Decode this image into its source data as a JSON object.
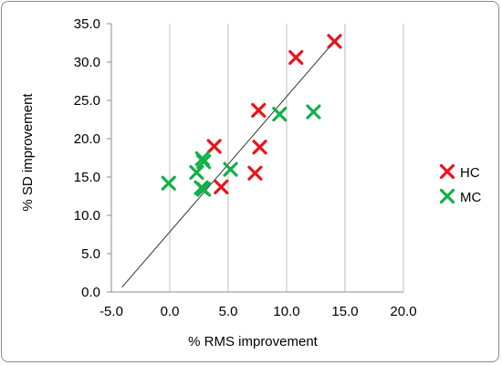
{
  "chart_data": {
    "type": "scatter",
    "xlabel": "% RMS improvement",
    "ylabel": "% SD improvement",
    "xlim": [
      -5.0,
      20.0
    ],
    "ylim": [
      0.0,
      35.0
    ],
    "x_ticks": [
      "-5.0",
      "0.0",
      "5.0",
      "10.0",
      "15.0",
      "20.0"
    ],
    "y_ticks": [
      "0.0",
      "5.0",
      "10.0",
      "15.0",
      "20.0",
      "25.0",
      "30.0",
      "35.0"
    ],
    "grid": "vertical",
    "legend_position": "right",
    "marker": "x",
    "series": [
      {
        "name": "HC",
        "color": "#e8141c",
        "points": [
          [
            14.1,
            32.7
          ],
          [
            10.8,
            30.6
          ],
          [
            7.6,
            23.7
          ],
          [
            3.8,
            19.0
          ],
          [
            7.7,
            18.9
          ],
          [
            7.3,
            15.5
          ],
          [
            4.4,
            13.7
          ]
        ]
      },
      {
        "name": "MC",
        "color": "#12b04a",
        "points": [
          [
            12.3,
            23.5
          ],
          [
            9.4,
            23.2
          ],
          [
            2.8,
            17.4
          ],
          [
            2.9,
            17.0
          ],
          [
            2.3,
            15.6
          ],
          [
            5.2,
            16.0
          ],
          [
            -0.1,
            14.2
          ],
          [
            2.7,
            13.6
          ],
          [
            2.9,
            13.4
          ]
        ]
      }
    ],
    "trendline": {
      "color": "#333333",
      "from": [
        -4.1,
        0.6
      ],
      "to": [
        13.8,
        32.2
      ]
    }
  }
}
